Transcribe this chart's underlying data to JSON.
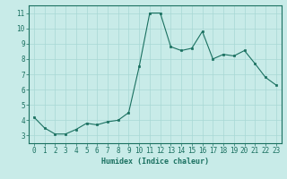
{
  "x": [
    0,
    1,
    2,
    3,
    4,
    5,
    6,
    7,
    8,
    9,
    10,
    11,
    12,
    13,
    14,
    15,
    16,
    17,
    18,
    19,
    20,
    21,
    22,
    23
  ],
  "y": [
    4.2,
    3.5,
    3.1,
    3.1,
    3.4,
    3.8,
    3.7,
    3.9,
    4.0,
    4.5,
    7.5,
    11.0,
    11.0,
    8.8,
    8.55,
    8.7,
    9.8,
    8.0,
    8.3,
    8.2,
    8.55,
    7.7,
    6.8,
    6.3
  ],
  "line_color": "#1a7060",
  "marker": "s",
  "marker_size": 2.0,
  "bg_color": "#c8ebe8",
  "grid_color": "#a8d8d4",
  "xlabel": "Humidex (Indice chaleur)",
  "ylim": [
    2.5,
    11.5
  ],
  "xlim": [
    -0.5,
    23.5
  ],
  "yticks": [
    3,
    4,
    5,
    6,
    7,
    8,
    9,
    10,
    11
  ],
  "xticks": [
    0,
    1,
    2,
    3,
    4,
    5,
    6,
    7,
    8,
    9,
    10,
    11,
    12,
    13,
    14,
    15,
    16,
    17,
    18,
    19,
    20,
    21,
    22,
    23
  ],
  "label_fontsize": 6.0,
  "tick_fontsize": 5.5
}
